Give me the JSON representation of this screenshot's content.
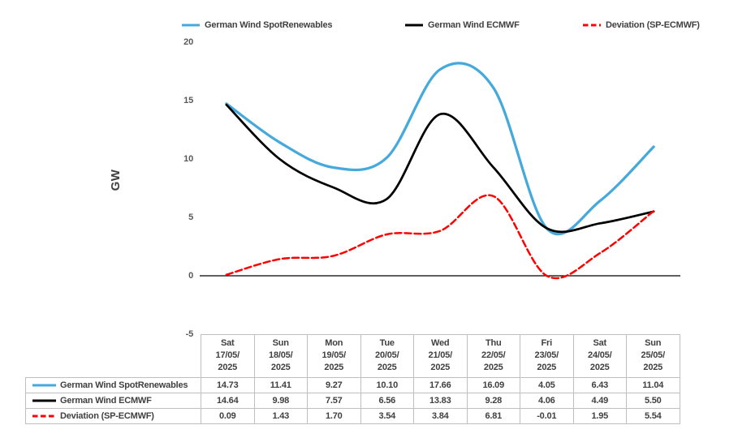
{
  "chart_data": {
    "type": "line",
    "title": "",
    "xlabel": "",
    "ylabel": "GW",
    "ylim": [
      -5,
      20
    ],
    "y_ticks": [
      20,
      15,
      10,
      5,
      0,
      -5
    ],
    "grid": false,
    "legend_position": "top",
    "line_style": "smoothed",
    "categories": [
      "Sat 17/05/2025",
      "Sun 18/05/2025",
      "Mon 19/05/2025",
      "Tue 20/05/2025",
      "Wed 21/05/2025",
      "Thu 22/05/2025",
      "Fri 23/05/2025",
      "Sat 24/05/2025",
      "Sun 25/05/2025"
    ],
    "series": [
      {
        "name": "German Wind SpotRenewables",
        "color": "#45A9DC",
        "style": "solid",
        "values": [
          14.73,
          11.41,
          9.27,
          10.1,
          17.66,
          16.09,
          4.05,
          6.43,
          11.04
        ]
      },
      {
        "name": "German Wind ECMWF",
        "color": "#000000",
        "style": "solid",
        "values": [
          14.64,
          9.98,
          7.57,
          6.56,
          13.83,
          9.28,
          4.06,
          4.49,
          5.5
        ]
      },
      {
        "name": "Deviation (SP-ECMWF)",
        "color": "#FF0000",
        "style": "dashed",
        "values": [
          0.09,
          1.43,
          1.7,
          3.54,
          3.84,
          6.81,
          -0.01,
          1.95,
          5.54
        ]
      }
    ]
  },
  "table": {
    "col_headers": [
      "Sat\n17/05/\n2025",
      "Sun\n18/05/\n2025",
      "Mon\n19/05/\n2025",
      "Tue\n20/05/\n2025",
      "Wed\n21/05/\n2025",
      "Thu\n22/05/\n2025",
      "Fri\n23/05/\n2025",
      "Sat\n24/05/\n2025",
      "Sun\n25/05/\n2025"
    ],
    "rows": [
      {
        "label": "German Wind SpotRenewables",
        "marker_color": "#45A9DC",
        "marker_style": "solid",
        "values": [
          "14.73",
          "11.41",
          "9.27",
          "10.10",
          "17.66",
          "16.09",
          "4.05",
          "6.43",
          "11.04"
        ]
      },
      {
        "label": "German Wind ECMWF",
        "marker_color": "#000000",
        "marker_style": "solid",
        "values": [
          "14.64",
          "9.98",
          "7.57",
          "6.56",
          "13.83",
          "9.28",
          "4.06",
          "4.49",
          "5.50"
        ]
      },
      {
        "label": "Deviation (SP-ECMWF)",
        "marker_color": "#FF0000",
        "marker_style": "dashed",
        "values": [
          "0.09",
          "1.43",
          "1.70",
          "3.54",
          "3.84",
          "6.81",
          "-0.01",
          "1.95",
          "5.54"
        ]
      }
    ]
  }
}
